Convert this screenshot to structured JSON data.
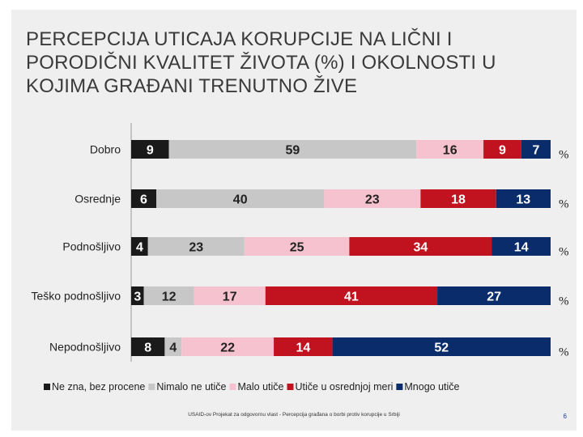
{
  "title": "PERCEPCIJA UTICAJA KORUPCIJE NA LIČNI I PORODIČNI KVALITET ŽIVOTA (%) I OKOLNOSTI U KOJIMA GRAĐANI TRENUTNO ŽIVE",
  "footer": "USAID-ov Projekat za odgovornu vlast - Percepcija građana o borbi protiv korupcije u Srbiji",
  "page_number": "6",
  "chart_data": {
    "type": "bar",
    "stacked": true,
    "orientation": "horizontal",
    "categories": [
      "Dobro",
      "Osrednje",
      "Podnošljivo",
      "Teško podnošljivo",
      "Nepodnošljivo"
    ],
    "series": [
      {
        "name": "Ne zna, bez procene",
        "color": "#1a1a1a",
        "values": [
          9,
          6,
          4,
          3,
          8
        ]
      },
      {
        "name": "Nimalo ne utiče",
        "color": "#c7c7c7",
        "values": [
          59,
          40,
          23,
          12,
          4
        ]
      },
      {
        "name": "Malo utiče",
        "color": "#f6c2cf",
        "values": [
          16,
          23,
          25,
          17,
          22
        ]
      },
      {
        "name": "Utiče u osrednjoj meri",
        "color": "#c1121f",
        "values": [
          9,
          18,
          34,
          41,
          14
        ]
      },
      {
        "name": "Mnogo utiče",
        "color": "#0b2c6b",
        "values": [
          7,
          13,
          14,
          27,
          52
        ]
      }
    ],
    "unit_label": "%",
    "legend_position": "bottom",
    "xlim": [
      0,
      100
    ]
  }
}
